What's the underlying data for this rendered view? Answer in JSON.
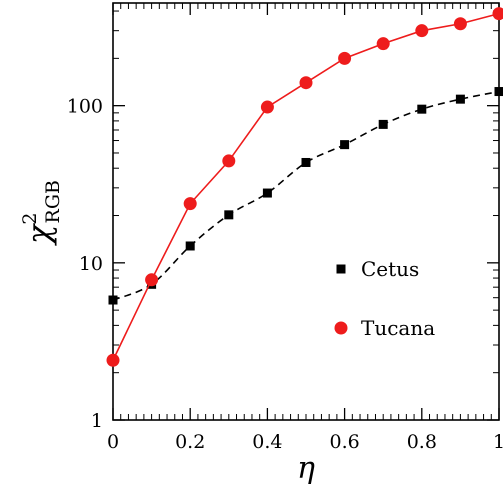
{
  "chart_data": {
    "type": "line",
    "xlabel": "η",
    "ylabel_main": "χ",
    "ylabel_sup": "2",
    "ylabel_sub": "RGB",
    "xlim": [
      0,
      1
    ],
    "ylim": [
      1,
      450
    ],
    "yscale": "log",
    "grid": false,
    "legend_position": "center-right",
    "x_ticks": [
      0,
      0.2,
      0.4,
      0.6,
      0.8,
      1
    ],
    "x_tick_labels": [
      "0",
      "0.2",
      "0.4",
      "0.6",
      "0.8",
      "1"
    ],
    "y_ticks": [
      1,
      10,
      100
    ],
    "y_tick_labels": [
      "1",
      "10",
      "100"
    ],
    "series": [
      {
        "name": "Cetus",
        "marker": "square",
        "line": "dashed",
        "color": "#000000",
        "x": [
          0,
          0.1,
          0.2,
          0.3,
          0.4,
          0.5,
          0.6,
          0.7,
          0.8,
          0.9,
          1.0
        ],
        "values": [
          5.8,
          7.3,
          12.8,
          20.2,
          27.8,
          43.5,
          56.5,
          76,
          95,
          110,
          123
        ]
      },
      {
        "name": "Tucana",
        "marker": "circle",
        "line": "solid",
        "color": "#ee1c1c",
        "x": [
          0,
          0.1,
          0.2,
          0.3,
          0.4,
          0.5,
          0.6,
          0.7,
          0.8,
          0.9,
          1.0
        ],
        "values": [
          2.4,
          7.8,
          23.8,
          44.5,
          98,
          140,
          200,
          248,
          300,
          332,
          385
        ]
      }
    ]
  }
}
